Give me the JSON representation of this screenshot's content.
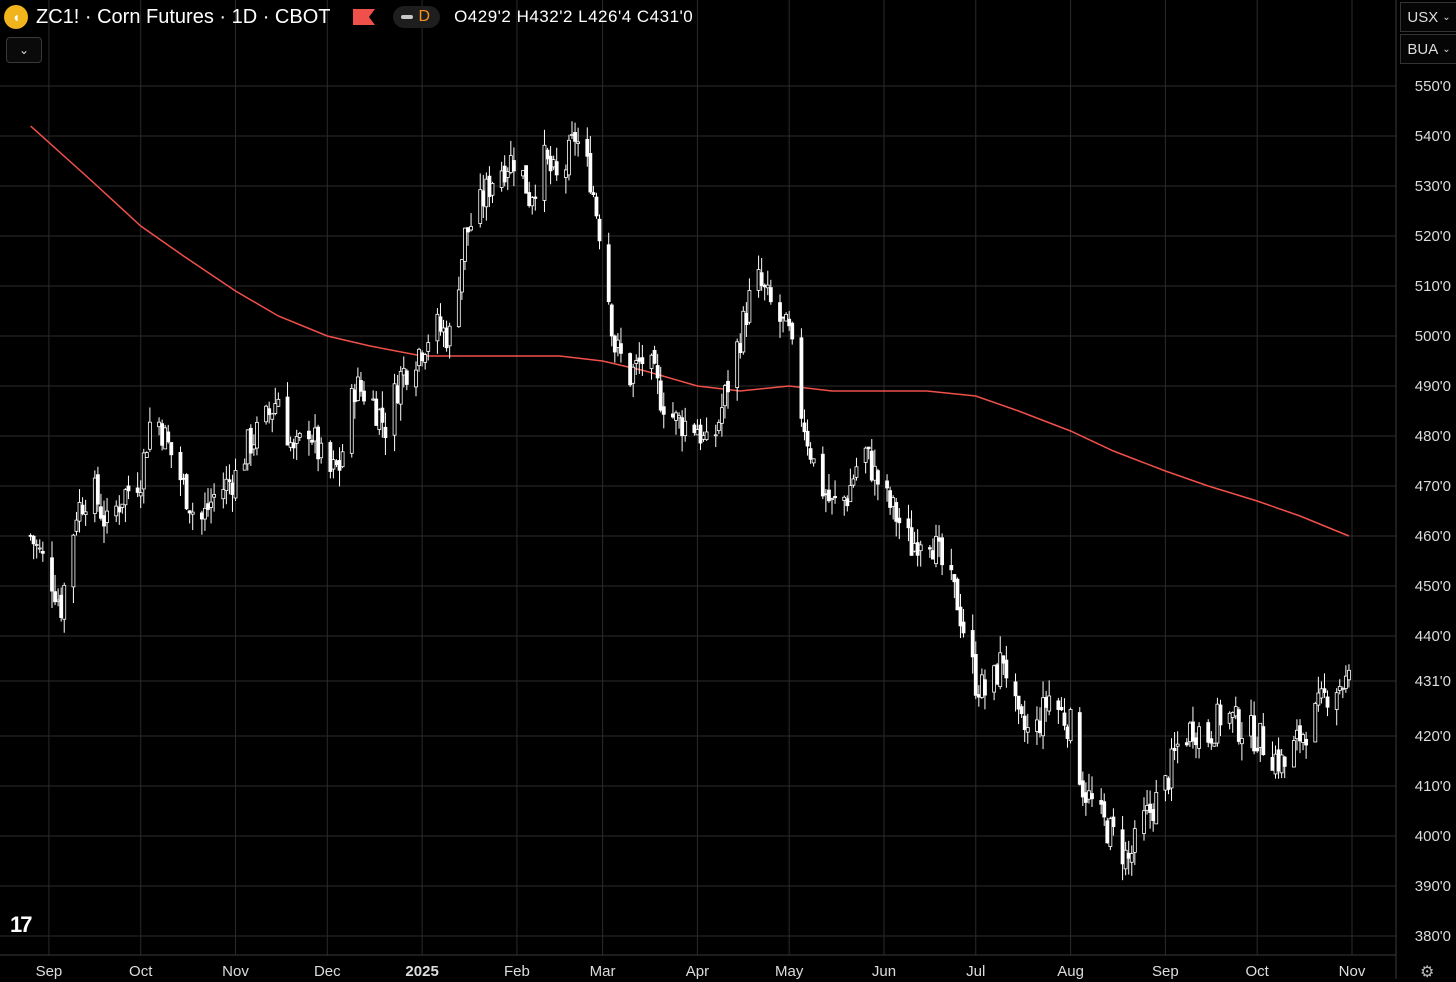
{
  "header": {
    "symbol_title": "ZC1! · Corn Futures · 1D · CBOT",
    "interval_badge": "D",
    "ohlc": "O429'2  H432'2  L426'4  C431'0"
  },
  "price_unit": {
    "currency": "USX",
    "unit": "BUA"
  },
  "icons": {
    "symbol": "corn-coin-icon",
    "flag": "flag-icon",
    "collapse": "chevron-down-icon",
    "logo": "tradingview-logo",
    "settings": "gear-icon"
  },
  "colors": {
    "background": "#000000",
    "grid": "#2b2b2b",
    "candle": "#ffffff",
    "moving_average": "#f0504a",
    "symbol_coin": "#f2b41c",
    "interval": "#f7931a"
  },
  "chart_data": {
    "type": "line",
    "title": "ZC1! · Corn Futures · 1D · CBOT",
    "xlabel": "",
    "ylabel": "",
    "x_tick_labels": [
      "Sep",
      "Oct",
      "Nov",
      "Dec",
      "2025",
      "Feb",
      "Mar",
      "Apr",
      "May",
      "Jun",
      "Jul",
      "Aug",
      "Sep",
      "Oct",
      "Nov"
    ],
    "y_tick_labels": [
      "550'0",
      "540'0",
      "530'0",
      "520'0",
      "510'0",
      "500'0",
      "490'0",
      "480'0",
      "470'0",
      "460'0",
      "450'0",
      "440'0",
      "431'0",
      "420'0",
      "410'0",
      "400'0",
      "390'0",
      "380'0"
    ],
    "y_tick_values": [
      550,
      540,
      530,
      520,
      510,
      500,
      490,
      480,
      470,
      460,
      450,
      440,
      431,
      420,
      410,
      400,
      390,
      380
    ],
    "ylim": [
      376,
      560
    ],
    "grid": true,
    "price_series": {
      "x": [
        "2024-08-26",
        "2024-09-01",
        "2024-09-05",
        "2024-09-10",
        "2024-09-15",
        "2024-09-20",
        "2024-09-25",
        "2024-10-01",
        "2024-10-05",
        "2024-10-10",
        "2024-10-15",
        "2024-10-20",
        "2024-10-25",
        "2024-11-01",
        "2024-11-05",
        "2024-11-10",
        "2024-11-15",
        "2024-11-20",
        "2024-11-25",
        "2024-12-01",
        "2024-12-05",
        "2024-12-10",
        "2024-12-15",
        "2024-12-20",
        "2024-12-25",
        "2025-01-01",
        "2025-01-05",
        "2025-01-10",
        "2025-01-15",
        "2025-01-20",
        "2025-01-25",
        "2025-02-01",
        "2025-02-05",
        "2025-02-10",
        "2025-02-15",
        "2025-02-20",
        "2025-02-25",
        "2025-03-01",
        "2025-03-05",
        "2025-03-10",
        "2025-03-15",
        "2025-03-20",
        "2025-03-25",
        "2025-04-01",
        "2025-04-05",
        "2025-04-10",
        "2025-04-15",
        "2025-04-20",
        "2025-04-25",
        "2025-05-01",
        "2025-05-05",
        "2025-05-10",
        "2025-05-15",
        "2025-05-20",
        "2025-05-25",
        "2025-06-01",
        "2025-06-05",
        "2025-06-10",
        "2025-06-15",
        "2025-06-20",
        "2025-06-25",
        "2025-07-01",
        "2025-07-05",
        "2025-07-10",
        "2025-07-15",
        "2025-07-20",
        "2025-07-25",
        "2025-08-01",
        "2025-08-05",
        "2025-08-10",
        "2025-08-15",
        "2025-08-20",
        "2025-08-25",
        "2025-09-01",
        "2025-09-05",
        "2025-09-10",
        "2025-09-15",
        "2025-09-20",
        "2025-09-25",
        "2025-10-01",
        "2025-10-05",
        "2025-10-10",
        "2025-10-15",
        "2025-10-20",
        "2025-10-25",
        "2025-10-31"
      ],
      "y": [
        460,
        453,
        446,
        465,
        470,
        462,
        468,
        472,
        486,
        478,
        470,
        462,
        468,
        472,
        478,
        482,
        488,
        476,
        482,
        472,
        474,
        490,
        488,
        482,
        492,
        498,
        502,
        500,
        520,
        526,
        533,
        536,
        528,
        535,
        530,
        540,
        532,
        518,
        498,
        492,
        496,
        488,
        483,
        482,
        476,
        488,
        500,
        512,
        506,
        500,
        485,
        472,
        466,
        468,
        478,
        468,
        464,
        458,
        462,
        454,
        447,
        431,
        428,
        436,
        422,
        420,
        428,
        422,
        410,
        404,
        400,
        395,
        403,
        410,
        418,
        422,
        420,
        425,
        422,
        420,
        417,
        414,
        420,
        424,
        430,
        431
      ]
    },
    "moving_average_series": {
      "x": [
        "2024-08-26",
        "2024-09-15",
        "2024-10-01",
        "2024-10-15",
        "2024-11-01",
        "2024-11-15",
        "2024-12-01",
        "2024-12-15",
        "2025-01-01",
        "2025-01-15",
        "2025-02-01",
        "2025-02-15",
        "2025-03-01",
        "2025-03-15",
        "2025-04-01",
        "2025-04-15",
        "2025-05-01",
        "2025-05-15",
        "2025-06-01",
        "2025-06-15",
        "2025-07-01",
        "2025-07-15",
        "2025-08-01",
        "2025-08-15",
        "2025-09-01",
        "2025-09-15",
        "2025-10-01",
        "2025-10-15",
        "2025-10-31"
      ],
      "y": [
        542,
        531,
        522,
        516,
        509,
        504,
        500,
        498,
        496,
        496,
        496,
        496,
        495,
        493,
        490,
        489,
        490,
        489,
        489,
        489,
        488,
        485,
        481,
        477,
        473,
        470,
        467,
        464,
        460
      ]
    }
  }
}
